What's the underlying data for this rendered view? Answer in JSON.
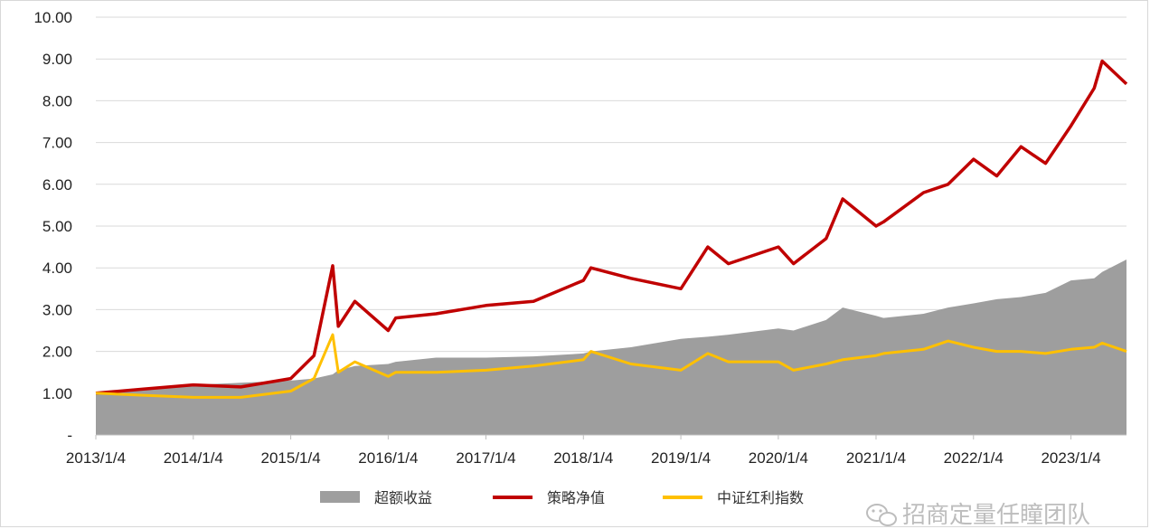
{
  "colors": {
    "excess_area": "#9e9e9e",
    "strategy_line": "#c00000",
    "index_line": "#ffc000",
    "grid": "#d9d9d9",
    "axis": "#bfbfbf",
    "watermark": "#bdbdbd"
  },
  "watermark": {
    "icon": "wechat-icon",
    "text": "招商定量任瞳团队"
  },
  "chart_data": {
    "type": "line",
    "title": "",
    "xlabel": "",
    "ylabel": "",
    "ylim": [
      0,
      10
    ],
    "y_ticks": [
      "-",
      "1.00",
      "2.00",
      "3.00",
      "4.00",
      "5.00",
      "6.00",
      "7.00",
      "8.00",
      "9.00",
      "10.00"
    ],
    "x_ticks": [
      "2013/1/4",
      "2014/1/4",
      "2015/1/4",
      "2016/1/4",
      "2017/1/4",
      "2018/1/4",
      "2019/1/4",
      "2020/1/4",
      "2021/1/4",
      "2022/1/4",
      "2023/1/4"
    ],
    "grid": "horizontal",
    "legend_position": "bottom",
    "x": [
      "2013/1/4",
      "2013/7/1",
      "2014/1/4",
      "2014/7/1",
      "2015/1/4",
      "2015/4/1",
      "2015/6/10",
      "2015/7/1",
      "2015/9/1",
      "2016/1/4",
      "2016/2/1",
      "2016/7/1",
      "2017/1/4",
      "2017/7/1",
      "2018/1/4",
      "2018/2/1",
      "2018/7/1",
      "2019/1/4",
      "2019/4/15",
      "2019/7/1",
      "2020/1/4",
      "2020/3/1",
      "2020/7/1",
      "2020/9/1",
      "2021/1/4",
      "2021/2/1",
      "2021/7/1",
      "2021/10/1",
      "2022/1/4",
      "2022/4/1",
      "2022/7/1",
      "2022/10/1",
      "2023/1/4",
      "2023/4/1",
      "2023/5/1",
      "2023/7/31"
    ],
    "series": [
      {
        "name": "超额收益",
        "style": "area",
        "values": [
          1.0,
          1.1,
          1.2,
          1.25,
          1.3,
          1.35,
          1.45,
          1.55,
          1.65,
          1.7,
          1.75,
          1.85,
          1.85,
          1.88,
          1.95,
          2.0,
          2.1,
          2.3,
          2.35,
          2.4,
          2.55,
          2.5,
          2.75,
          3.05,
          2.85,
          2.8,
          2.9,
          3.05,
          3.15,
          3.25,
          3.3,
          3.4,
          3.7,
          3.75,
          3.9,
          4.2
        ]
      },
      {
        "name": "策略净值",
        "style": "line",
        "values": [
          1.0,
          1.1,
          1.2,
          1.15,
          1.35,
          1.9,
          4.05,
          2.6,
          3.2,
          2.5,
          2.8,
          2.9,
          3.1,
          3.2,
          3.7,
          4.0,
          3.75,
          3.5,
          4.5,
          4.1,
          4.5,
          4.1,
          4.7,
          5.65,
          5.0,
          5.1,
          5.8,
          6.0,
          6.6,
          6.2,
          6.9,
          6.5,
          7.4,
          8.3,
          8.95,
          8.4
        ]
      },
      {
        "name": "中证红利指数",
        "style": "line",
        "values": [
          1.0,
          0.95,
          0.9,
          0.9,
          1.05,
          1.35,
          2.4,
          1.5,
          1.75,
          1.4,
          1.5,
          1.5,
          1.55,
          1.65,
          1.8,
          2.0,
          1.7,
          1.55,
          1.95,
          1.75,
          1.75,
          1.55,
          1.7,
          1.8,
          1.9,
          1.95,
          2.05,
          2.25,
          2.1,
          2.0,
          2.0,
          1.95,
          2.05,
          2.1,
          2.2,
          2.0
        ]
      }
    ]
  }
}
